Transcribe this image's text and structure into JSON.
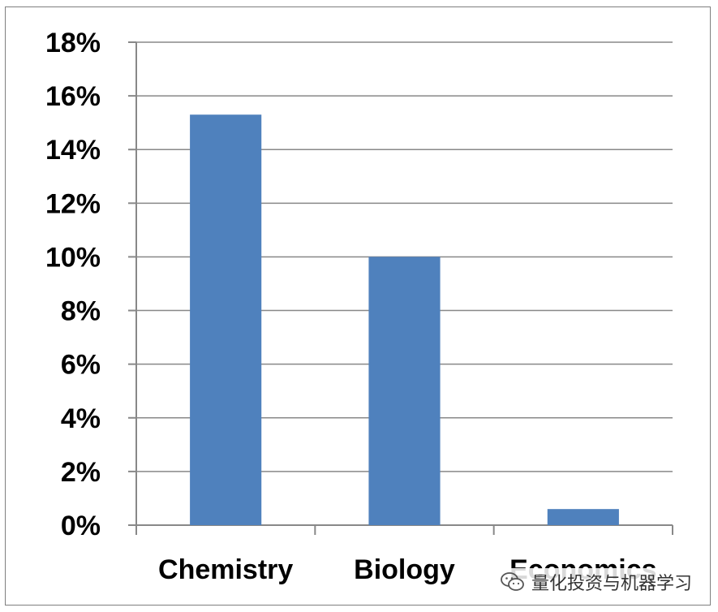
{
  "chart_data": {
    "type": "bar",
    "categories": [
      "Chemistry",
      "Biology",
      "Economics"
    ],
    "values": [
      0.153,
      0.1,
      0.006
    ],
    "ylim": [
      0,
      0.18
    ],
    "yticks": [
      0,
      0.02,
      0.04,
      0.06,
      0.08,
      0.1,
      0.12,
      0.14,
      0.16,
      0.18
    ],
    "ytick_labels": [
      "0%",
      "2%",
      "4%",
      "6%",
      "8%",
      "10%",
      "12%",
      "14%",
      "16%",
      "18%"
    ],
    "grid": true,
    "bar_color": "#4f81bd",
    "title": "",
    "xlabel": "",
    "ylabel": ""
  },
  "watermark": {
    "icon": "wechat-icon",
    "text": "量化投资与机器学习"
  }
}
